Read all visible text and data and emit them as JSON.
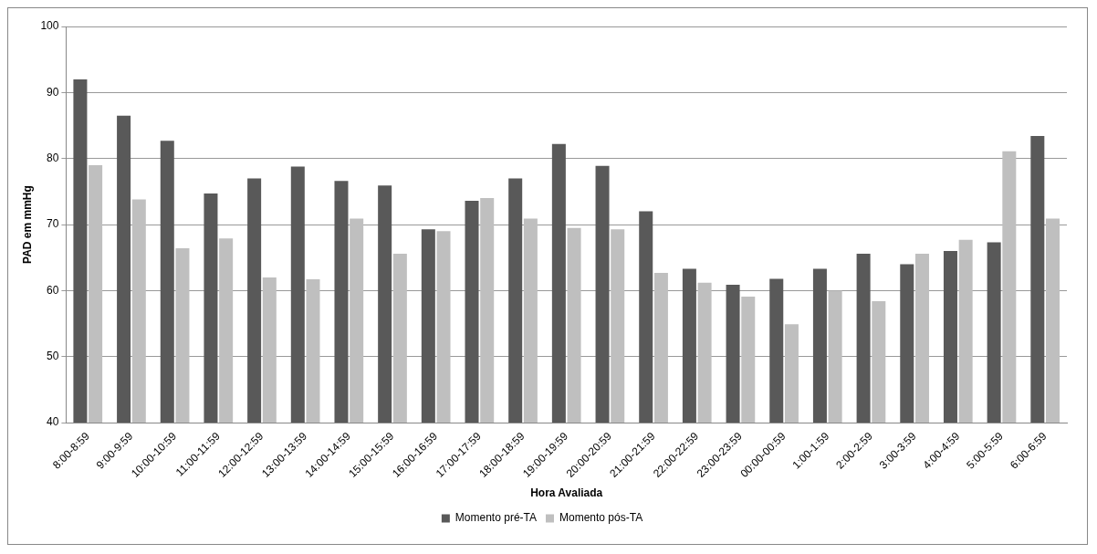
{
  "chart_data": {
    "type": "bar",
    "xlabel": "Hora Avaliada",
    "ylabel": "PAD em mmHg",
    "categories": [
      "8:00-8:59",
      "9:00-9:59",
      "10:00-10:59",
      "11:00-11:59",
      "12:00-12:59",
      "13:00-13:59",
      "14:00-14:59",
      "15:00-15:59",
      "16:00-16:59",
      "17:00-17:59",
      "18:00-18:59",
      "19:00-19:59",
      "20:00-20:59",
      "21:00-21:59",
      "22:00-22:59",
      "23:00-23:59",
      "00:00-00:59",
      "1:00-1:59",
      "2:00-2:59",
      "3:00-3:59",
      "4:00-4:59",
      "5:00-5:59",
      "6:00-6:59"
    ],
    "series": [
      {
        "name": "Momento pré-TA",
        "color": "#595959",
        "values": [
          92,
          86.5,
          82.7,
          74.7,
          77,
          78.8,
          76.6,
          75.9,
          69.3,
          73.6,
          77,
          82.2,
          78.9,
          72,
          63.3,
          60.9,
          61.8,
          63.3,
          65.6,
          64,
          66,
          67.3,
          83.4
        ]
      },
      {
        "name": "Momento pós-TA",
        "color": "#bfbfbf",
        "values": [
          79,
          73.8,
          66.4,
          67.9,
          62,
          61.7,
          70.9,
          65.6,
          69,
          74,
          70.9,
          69.5,
          69.3,
          62.7,
          61.2,
          59.1,
          54.9,
          60,
          58.4,
          65.6,
          67.7,
          81.1,
          70.9
        ]
      }
    ],
    "ylim": [
      40,
      100
    ],
    "yticks": [
      40,
      50,
      60,
      70,
      80,
      90,
      100
    ],
    "grid": "y",
    "legend": "bottom"
  }
}
